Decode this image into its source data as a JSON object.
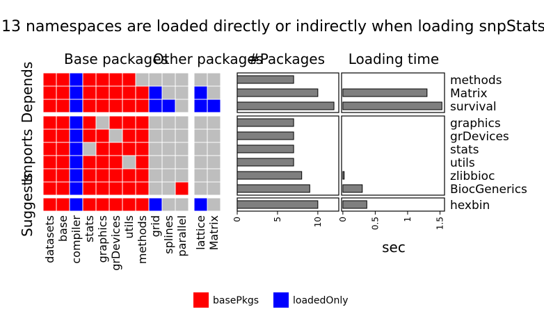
{
  "colors": {
    "basePkgs": "#ff0000",
    "loadedOnly": "#0000ff",
    "empty": "#bebebe",
    "bar": "#7f7f7f"
  },
  "chart_data": {
    "type": "bar",
    "title": "13 namespaces are loaded directly or indirectly when loading snpStats",
    "panel_titles": {
      "base": "Base packages",
      "other": "Other packages",
      "npkg": "#Packages",
      "time": "Loading time"
    },
    "groups": [
      "Depends",
      "Imports",
      "Suggests"
    ],
    "packages": [
      "methods",
      "Matrix",
      "survival",
      "graphics",
      "grDevices",
      "stats",
      "utils",
      "zlibbioc",
      "BiocGenerics",
      "hexbin"
    ],
    "package_groups": [
      "Depends",
      "Depends",
      "Depends",
      "Imports",
      "Imports",
      "Imports",
      "Imports",
      "Imports",
      "Imports",
      "Suggests"
    ],
    "base_columns": [
      "datasets",
      "base",
      "compiler",
      "stats",
      "graphics",
      "grDevices",
      "utils",
      "methods",
      "grid",
      "splines",
      "parallel"
    ],
    "other_columns": [
      "lattice",
      "Matrix"
    ],
    "matrix": [
      [
        "R",
        "R",
        "B",
        "R",
        "R",
        "R",
        "R",
        "-",
        "-",
        "-",
        "-",
        "-",
        "-"
      ],
      [
        "R",
        "R",
        "B",
        "R",
        "R",
        "R",
        "R",
        "R",
        "B",
        "-",
        "-",
        "B",
        "-"
      ],
      [
        "R",
        "R",
        "B",
        "R",
        "R",
        "R",
        "R",
        "R",
        "B",
        "B",
        "-",
        "B",
        "B"
      ],
      [
        "R",
        "R",
        "B",
        "R",
        "-",
        "R",
        "R",
        "R",
        "-",
        "-",
        "-",
        "-",
        "-"
      ],
      [
        "R",
        "R",
        "B",
        "R",
        "R",
        "-",
        "R",
        "R",
        "-",
        "-",
        "-",
        "-",
        "-"
      ],
      [
        "R",
        "R",
        "B",
        "-",
        "R",
        "R",
        "R",
        "R",
        "-",
        "-",
        "-",
        "-",
        "-"
      ],
      [
        "R",
        "R",
        "B",
        "R",
        "R",
        "R",
        "-",
        "R",
        "-",
        "-",
        "-",
        "-",
        "-"
      ],
      [
        "R",
        "R",
        "B",
        "R",
        "R",
        "R",
        "R",
        "R",
        "-",
        "-",
        "-",
        "-",
        "-"
      ],
      [
        "R",
        "R",
        "B",
        "R",
        "R",
        "R",
        "R",
        "R",
        "-",
        "-",
        "R",
        "-",
        "-"
      ],
      [
        "R",
        "R",
        "B",
        "R",
        "R",
        "R",
        "R",
        "R",
        "B",
        "-",
        "-",
        "B",
        "-"
      ]
    ],
    "n_packages": {
      "values": [
        7,
        10,
        12,
        7,
        7,
        7,
        7,
        8,
        9,
        10
      ],
      "xlim": [
        0,
        12.6
      ],
      "ticks": [
        "0",
        "5",
        "10"
      ]
    },
    "loading_time": {
      "values": [
        0,
        1.3,
        1.53,
        0,
        0,
        0,
        0,
        0.02,
        0.3,
        0.37
      ],
      "xlim": [
        -0.02,
        1.57
      ],
      "ticks": [
        "0",
        "0.5",
        "1",
        "1.5"
      ],
      "xlabel": "sec"
    },
    "legend": [
      {
        "label": "basePkgs",
        "color": "#ff0000"
      },
      {
        "label": "loadedOnly",
        "color": "#0000ff"
      }
    ],
    "legend_position": "bottom"
  }
}
